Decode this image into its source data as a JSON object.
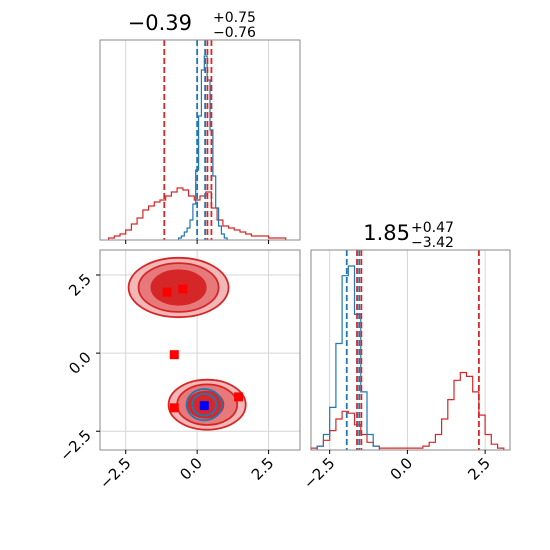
{
  "colors": {
    "red": "#d62728",
    "blue": "#1f77b4",
    "grid": "#d6d6d6",
    "fill_dark": "#d62728",
    "fill_mid": "#e8797a",
    "fill_light": "#f3b7b7"
  },
  "chart_data": {
    "type": "corner",
    "grid": true,
    "ranges": {
      "p1": [
        -3.4,
        3.6
      ],
      "p2": [
        -3.1,
        3.3
      ]
    },
    "ticks": {
      "p1": [
        {
          "v": -2.5,
          "label": "−2.5"
        },
        {
          "v": 0.0,
          "label": "0.0"
        },
        {
          "v": 2.5,
          "label": "2.5"
        }
      ],
      "p2": [
        {
          "v": -2.5,
          "label": "−2.5"
        },
        {
          "v": 0.0,
          "label": "0.0"
        },
        {
          "v": 2.5,
          "label": "2.5"
        }
      ]
    },
    "titles": {
      "p1": {
        "value": "−0.39",
        "plus": "+0.75",
        "minus": "−0.76"
      },
      "p2": {
        "value": "1.85",
        "plus": "+0.47",
        "minus": "−3.42"
      }
    },
    "marginal_p1": {
      "red_series": {
        "x": [
          -3.0,
          -2.8,
          -2.6,
          -2.4,
          -2.2,
          -2.0,
          -1.8,
          -1.6,
          -1.4,
          -1.2,
          -1.0,
          -0.8,
          -0.6,
          -0.4,
          -0.2,
          0.0,
          0.2,
          0.4,
          0.6,
          0.8,
          1.0,
          1.2,
          1.4,
          1.6,
          1.8,
          2.0,
          2.2,
          2.4,
          2.6,
          2.8,
          3.0
        ],
        "density": [
          0.01,
          0.02,
          0.03,
          0.05,
          0.08,
          0.11,
          0.15,
          0.17,
          0.19,
          0.2,
          0.22,
          0.24,
          0.26,
          0.25,
          0.22,
          0.2,
          0.22,
          0.24,
          0.16,
          0.1,
          0.07,
          0.06,
          0.05,
          0.04,
          0.03,
          0.02,
          0.02,
          0.02,
          0.01,
          0.01,
          0.01
        ]
      },
      "blue_series": {
        "x": [
          -0.6,
          -0.5,
          -0.4,
          -0.3,
          -0.2,
          -0.1,
          0.0,
          0.1,
          0.2,
          0.3,
          0.4,
          0.5,
          0.6,
          0.7,
          0.8,
          0.9,
          1.0
        ],
        "density": [
          0.01,
          0.02,
          0.04,
          0.06,
          0.1,
          0.18,
          0.35,
          0.62,
          0.85,
          0.92,
          0.8,
          0.55,
          0.32,
          0.16,
          0.07,
          0.03,
          0.01
        ]
      },
      "red_lines": [
        -1.15,
        0.36,
        0.5
      ],
      "blue_lines": [
        0.0,
        0.28
      ]
    },
    "marginal_p2": {
      "red_series": {
        "x": [
          -3.0,
          -2.8,
          -2.6,
          -2.4,
          -2.2,
          -2.0,
          -1.8,
          -1.6,
          -1.4,
          -1.2,
          -1.0,
          -0.8,
          -0.6,
          -0.4,
          -0.2,
          0.0,
          0.2,
          0.4,
          0.6,
          0.8,
          1.0,
          1.2,
          1.4,
          1.6,
          1.8,
          2.0,
          2.2,
          2.4,
          2.6,
          2.8,
          3.0
        ],
        "density": [
          0.01,
          0.02,
          0.05,
          0.1,
          0.16,
          0.2,
          0.19,
          0.13,
          0.08,
          0.04,
          0.02,
          0.01,
          0.01,
          0.01,
          0.01,
          0.01,
          0.01,
          0.01,
          0.02,
          0.04,
          0.08,
          0.16,
          0.26,
          0.36,
          0.4,
          0.38,
          0.3,
          0.18,
          0.08,
          0.03,
          0.01
        ]
      },
      "blue_series": {
        "x": [
          -2.8,
          -2.6,
          -2.4,
          -2.2,
          -2.0,
          -1.8,
          -1.6,
          -1.4,
          -1.2,
          -1.0
        ],
        "density": [
          0.02,
          0.08,
          0.22,
          0.55,
          0.9,
          0.95,
          0.7,
          0.3,
          0.08,
          0.02
        ]
      },
      "red_lines": [
        -1.62,
        -1.48,
        2.3
      ],
      "blue_lines": [
        -1.95,
        -1.55
      ]
    },
    "joint": {
      "red_contours": [
        {
          "level": 1,
          "blobs": [
            {
              "cx": -0.65,
              "cy": 2.1,
              "rx": 1.75,
              "ry": 0.95
            },
            {
              "cx": 0.35,
              "cy": -1.65,
              "rx": 1.35,
              "ry": 0.8
            }
          ]
        },
        {
          "level": 2,
          "blobs": [
            {
              "cx": -0.65,
              "cy": 2.1,
              "rx": 1.4,
              "ry": 0.78
            },
            {
              "cx": 0.35,
              "cy": -1.65,
              "rx": 1.05,
              "ry": 0.65
            }
          ]
        },
        {
          "level": 3,
          "blobs": [
            {
              "cx": -0.65,
              "cy": 2.1,
              "rx": 0.95,
              "ry": 0.55
            },
            {
              "cx": 0.3,
              "cy": -1.65,
              "rx": 0.62,
              "ry": 0.42
            }
          ]
        }
      ],
      "blue_contours": [
        {
          "level": 1,
          "blobs": [
            {
              "cx": 0.25,
              "cy": -1.65,
              "rx": 0.62,
              "ry": 0.5
            }
          ]
        },
        {
          "level": 2,
          "blobs": [
            {
              "cx": 0.25,
              "cy": -1.65,
              "rx": 0.42,
              "ry": 0.35
            }
          ]
        }
      ],
      "red_points": [
        {
          "x": -1.05,
          "y": 1.95
        },
        {
          "x": -0.5,
          "y": 2.05
        },
        {
          "x": -0.8,
          "y": -0.05
        },
        {
          "x": -0.8,
          "y": -1.75
        },
        {
          "x": 1.45,
          "y": -1.4
        }
      ],
      "blue_points": [
        {
          "x": 0.25,
          "y": -1.68
        }
      ]
    }
  }
}
